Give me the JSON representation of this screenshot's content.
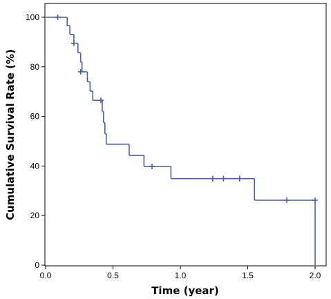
{
  "chart_data": {
    "type": "line",
    "subtype": "kaplan-meier step curve with censor marks",
    "title": "",
    "xlabel": "Time (year)",
    "ylabel": "Cumulative Survival Rate (%)",
    "xlim": [
      0.0,
      2.0
    ],
    "ylim": [
      0,
      100
    ],
    "x_ticks": [
      0.0,
      0.5,
      1.0,
      1.5,
      2.0
    ],
    "x_tick_labels": [
      "0.0",
      "0.5",
      "1.0",
      "1.5",
      "2.0"
    ],
    "y_ticks": [
      0,
      20,
      40,
      60,
      80,
      100
    ],
    "y_tick_labels": [
      "0",
      "20",
      "40",
      "60",
      "80",
      "100"
    ],
    "grid": false,
    "frame": "box",
    "line_color": "#4a5ea8",
    "step_points": [
      {
        "x": 0.0,
        "y": 100
      },
      {
        "x": 0.16,
        "y": 96.6
      },
      {
        "x": 0.18,
        "y": 93.1
      },
      {
        "x": 0.21,
        "y": 89.5
      },
      {
        "x": 0.24,
        "y": 85.7
      },
      {
        "x": 0.26,
        "y": 82.0
      },
      {
        "x": 0.27,
        "y": 78.0
      },
      {
        "x": 0.31,
        "y": 74.0
      },
      {
        "x": 0.33,
        "y": 70.2
      },
      {
        "x": 0.35,
        "y": 66.5
      },
      {
        "x": 0.42,
        "y": 62.0
      },
      {
        "x": 0.43,
        "y": 57.5
      },
      {
        "x": 0.44,
        "y": 53.0
      },
      {
        "x": 0.45,
        "y": 48.8
      },
      {
        "x": 0.62,
        "y": 44.3
      },
      {
        "x": 0.73,
        "y": 39.8
      },
      {
        "x": 0.93,
        "y": 34.9
      },
      {
        "x": 1.55,
        "y": 26.2
      },
      {
        "x": 2.0,
        "y": 0
      }
    ],
    "censor_marks": [
      {
        "x": 0.09,
        "y": 100
      },
      {
        "x": 0.21,
        "y": 89.5
      },
      {
        "x": 0.26,
        "y": 78.0
      },
      {
        "x": 0.41,
        "y": 66.5
      },
      {
        "x": 0.79,
        "y": 39.8
      },
      {
        "x": 1.24,
        "y": 34.9
      },
      {
        "x": 1.32,
        "y": 34.9
      },
      {
        "x": 1.44,
        "y": 34.9
      },
      {
        "x": 1.79,
        "y": 26.2
      },
      {
        "x": 2.0,
        "y": 26.2
      }
    ]
  }
}
